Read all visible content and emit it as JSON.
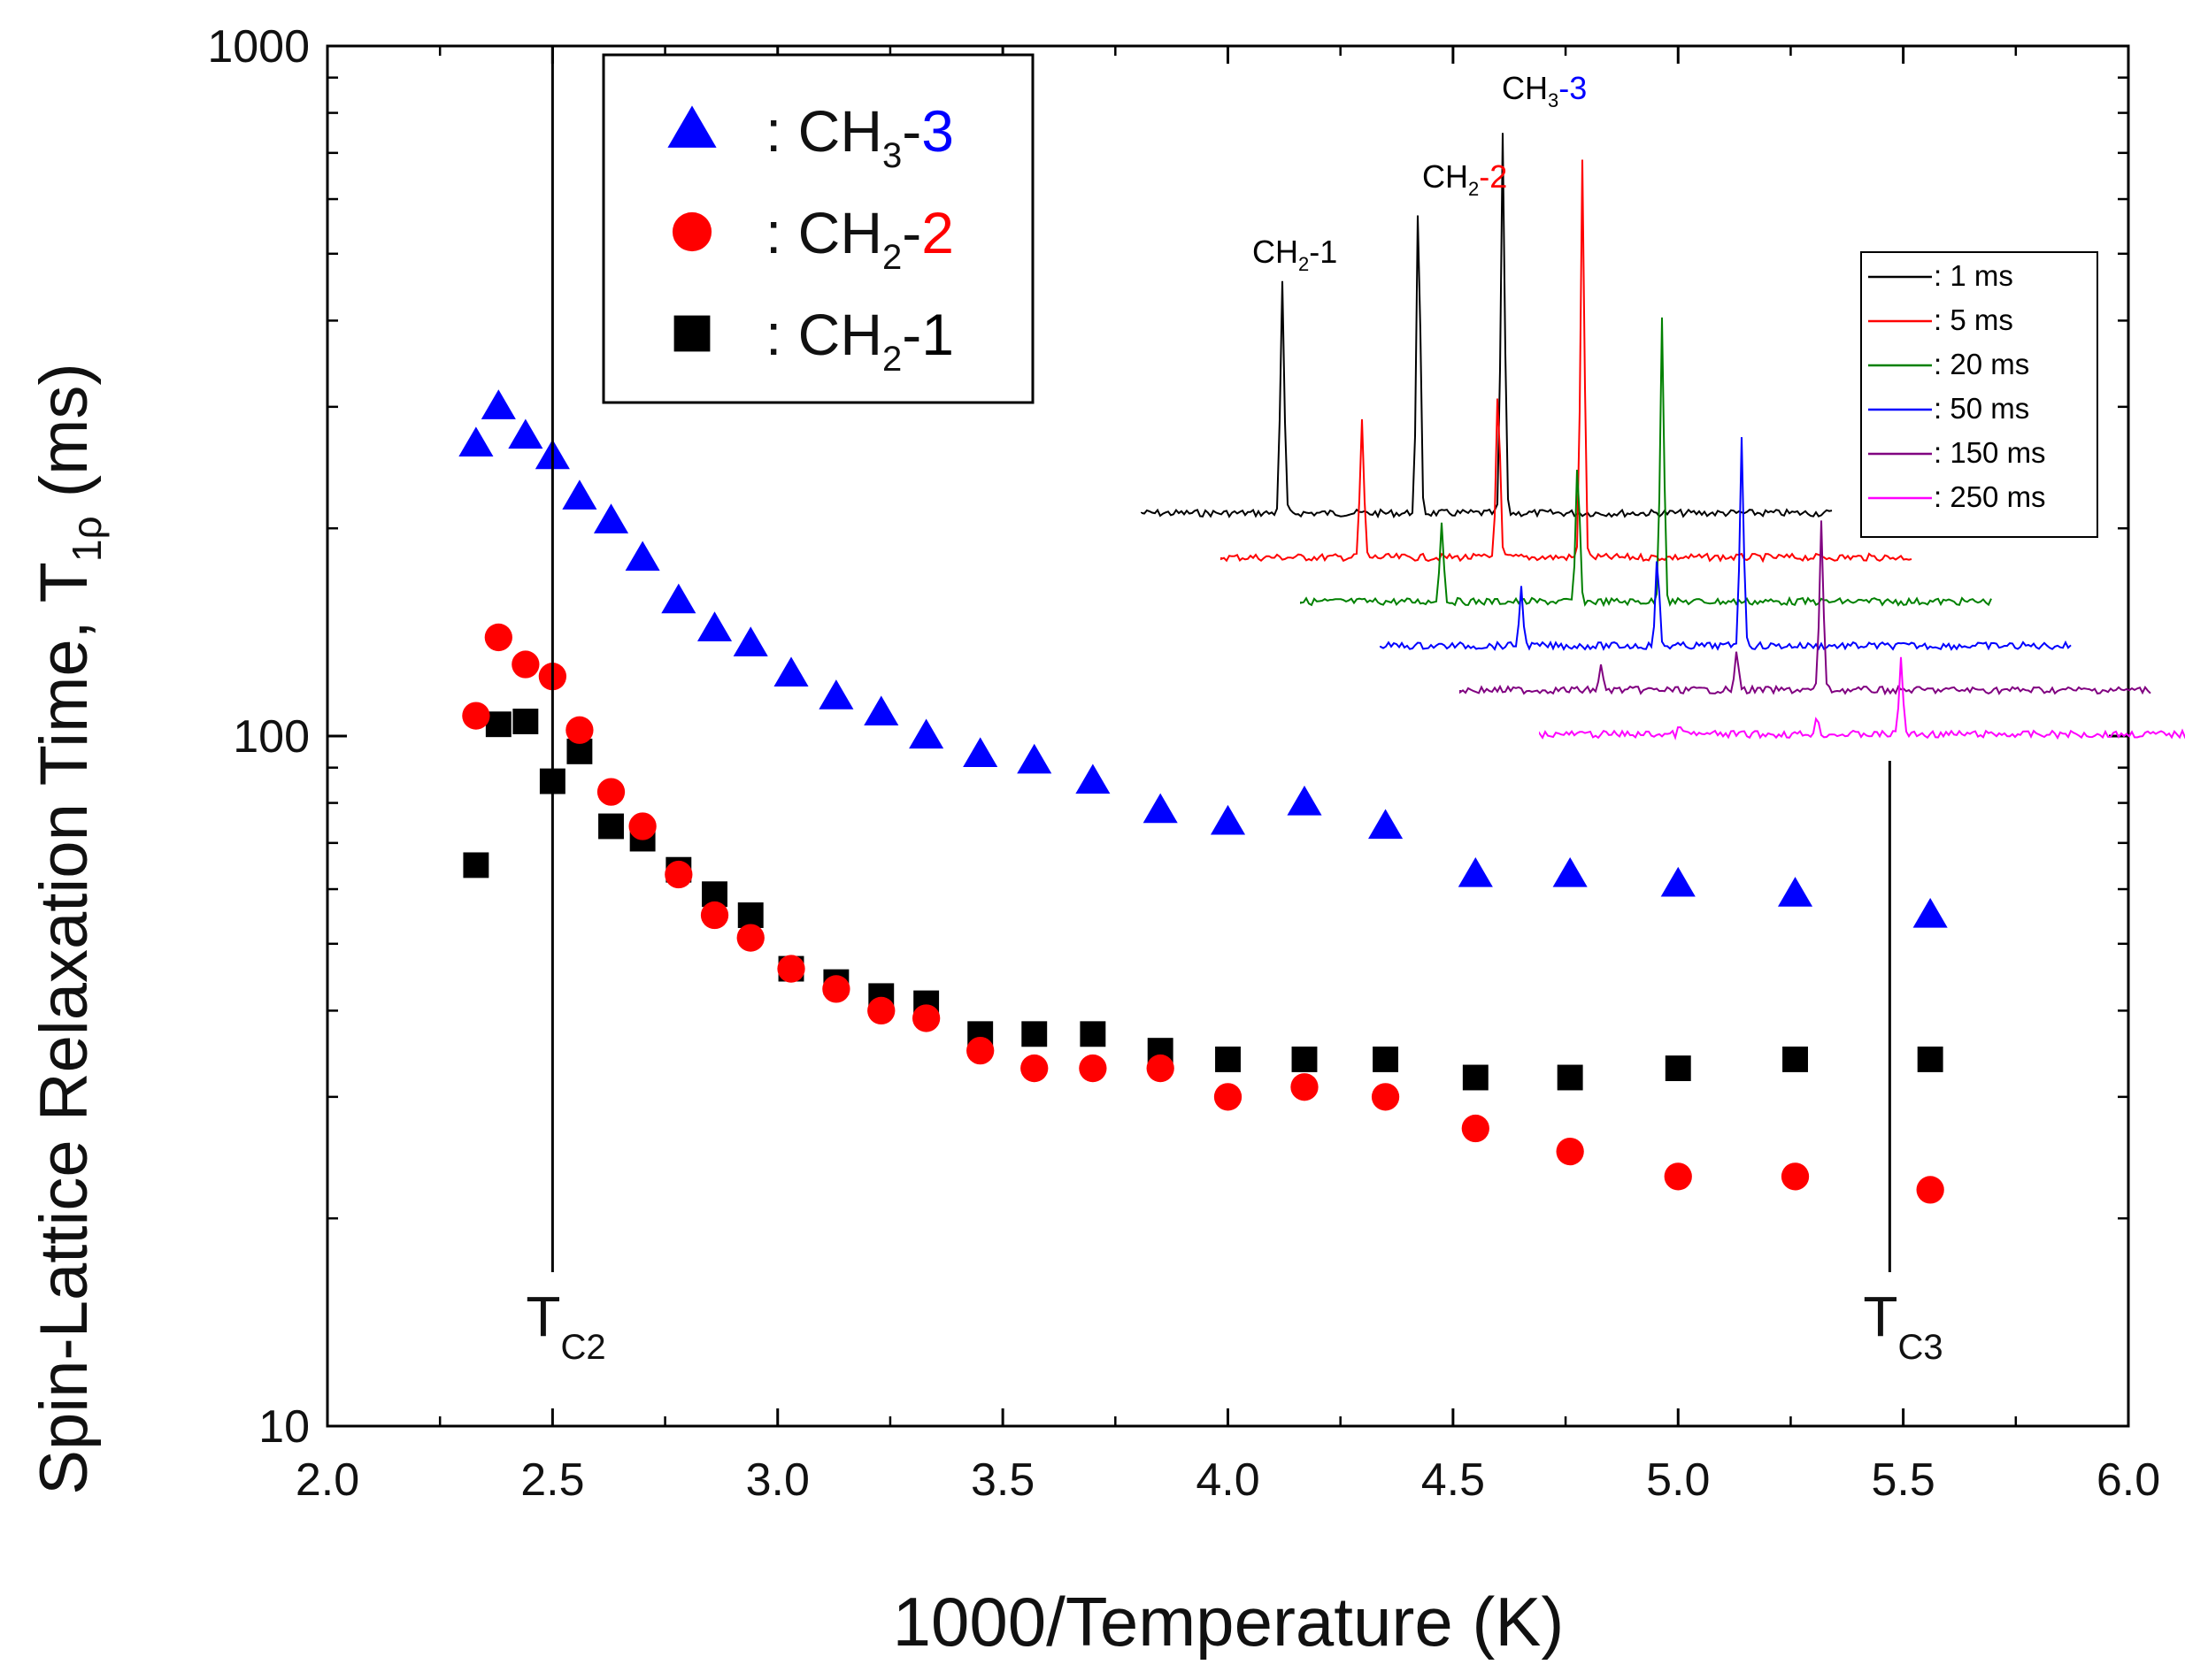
{
  "chart_data": {
    "type": "scatter",
    "xlabel": "1000/Temperature (K)",
    "ylabel": "Spin-Lattice Relaxation Time, T",
    "ylabel_sub": "1ρ",
    "ylabel_unit": "(ms)",
    "xlim": [
      2.0,
      6.0
    ],
    "ylim": [
      10,
      1000
    ],
    "yscale": "log",
    "x_ticks": [
      "2.0",
      "2.5",
      "3.0",
      "3.5",
      "4.0",
      "4.5",
      "5.0",
      "5.5",
      "6.0"
    ],
    "y_ticks": [
      "10",
      "100",
      "1000"
    ],
    "series": [
      {
        "name": "CH3-3",
        "legend_prefix": ": CH",
        "legend_sub": "3",
        "legend_dash": "-",
        "legend_num": "3",
        "marker": "triangle",
        "color": "#0000ff",
        "num_color": "#0000ff",
        "x": [
          2.33,
          2.38,
          2.44,
          2.5,
          2.56,
          2.63,
          2.7,
          2.78,
          2.86,
          2.94,
          3.03,
          3.13,
          3.23,
          3.33,
          3.45,
          3.57,
          3.7,
          3.85,
          4.0,
          4.17,
          4.35,
          4.55,
          4.76,
          5.0,
          5.26,
          5.56
        ],
        "y": [
          265,
          300,
          272,
          254,
          222,
          205,
          181,
          157,
          143,
          136,
          123,
          114,
          108,
          100,
          94,
          92,
          86,
          78,
          75,
          80,
          74,
          63,
          63,
          61,
          59,
          55
        ]
      },
      {
        "name": "CH2-2",
        "legend_prefix": ": CH",
        "legend_sub": "2",
        "legend_dash": "-",
        "legend_num": "2",
        "marker": "circle",
        "color": "#ff0000",
        "num_color": "#ff0000",
        "x": [
          2.33,
          2.38,
          2.44,
          2.5,
          2.56,
          2.63,
          2.7,
          2.78,
          2.86,
          2.94,
          3.03,
          3.13,
          3.23,
          3.33,
          3.45,
          3.57,
          3.7,
          3.85,
          4.0,
          4.17,
          4.35,
          4.55,
          4.76,
          5.0,
          5.26,
          5.56
        ],
        "y": [
          107,
          139,
          127,
          122,
          102,
          83,
          74,
          63,
          55,
          51,
          46,
          43,
          40,
          39,
          35,
          33,
          33,
          33,
          30,
          31,
          30,
          27,
          25,
          23,
          23,
          22
        ]
      },
      {
        "name": "CH2-1",
        "legend_prefix": ": CH",
        "legend_sub": "2",
        "legend_dash": "-",
        "legend_num": "1",
        "marker": "square",
        "color": "#000000",
        "num_color": "#000000",
        "x": [
          2.33,
          2.38,
          2.44,
          2.5,
          2.56,
          2.63,
          2.7,
          2.78,
          2.86,
          2.94,
          3.03,
          3.13,
          3.23,
          3.33,
          3.45,
          3.57,
          3.7,
          3.85,
          4.0,
          4.17,
          4.35,
          4.55,
          4.76,
          5.0,
          5.26,
          5.56
        ],
        "y": [
          65,
          104,
          105,
          86,
          95,
          74,
          71,
          64,
          59,
          55,
          46,
          44,
          42,
          41,
          37,
          37,
          37,
          35,
          34,
          34,
          34,
          32,
          32,
          33,
          34,
          34
        ]
      }
    ],
    "annotations": [
      {
        "label": "T",
        "sub": "C2",
        "x": 2.5
      },
      {
        "label": "T",
        "sub": "C3",
        "x": 5.47
      }
    ],
    "inset": {
      "peak_labels": [
        {
          "base": "CH",
          "sub": "2",
          "suffix": "-1",
          "suffix_color": "#000000"
        },
        {
          "base": "CH",
          "sub": "2",
          "suffix": "-2",
          "suffix_color": "#ff0000"
        },
        {
          "base": "CH",
          "sub": "3",
          "suffix": "-3",
          "suffix_color": "#0000ff"
        }
      ],
      "legend": [
        {
          "label": ": 1 ms",
          "color": "#000000"
        },
        {
          "label": ": 5 ms",
          "color": "#ff0000"
        },
        {
          "label": ": 20 ms",
          "color": "#008000"
        },
        {
          "label": ": 50 ms",
          "color": "#0000ff"
        },
        {
          "label": ": 150 ms",
          "color": "#800080"
        },
        {
          "label": ": 250 ms",
          "color": "#ff00ff"
        }
      ],
      "peak_heights": [
        [
          1.0,
          1.0,
          1.0
        ],
        [
          0.6,
          0.55,
          1.05
        ],
        [
          0.35,
          0.45,
          0.75
        ],
        [
          0.25,
          0.28,
          0.55
        ],
        [
          0.1,
          0.12,
          0.45
        ],
        [
          0.04,
          0.05,
          0.2
        ]
      ]
    }
  }
}
